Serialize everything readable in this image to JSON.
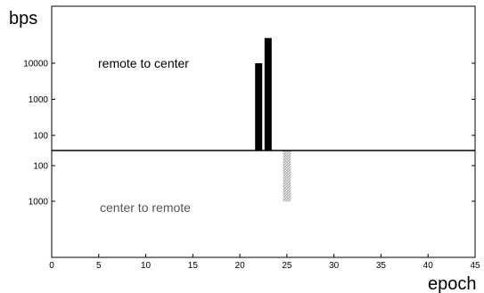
{
  "chart_data": {
    "type": "bar",
    "ylabel": "bps",
    "xlabel": "epoch",
    "xlim": [
      0,
      45
    ],
    "x_ticks": [
      0,
      5,
      10,
      15,
      20,
      25,
      30,
      35,
      40,
      45
    ],
    "y_scale": "log",
    "y_ticks_up": [
      "100",
      "1000",
      "10000"
    ],
    "y_ticks_down": [
      "100",
      "1000"
    ],
    "annotations": [
      "remote to center",
      "center to remote"
    ],
    "series": [
      {
        "direction": "up",
        "color": "#000000",
        "points": [
          {
            "x": 1,
            "y": 18
          },
          {
            "x": 2,
            "y": 22
          },
          {
            "x": 3,
            "y": 18
          },
          {
            "x": 4,
            "y": 20
          },
          {
            "x": 5,
            "y": 22
          },
          {
            "x": 6,
            "y": 18
          },
          {
            "x": 7,
            "y": 20
          },
          {
            "x": 8,
            "y": 16
          },
          {
            "x": 9,
            "y": 20
          },
          {
            "x": 10,
            "y": 18
          },
          {
            "x": 11,
            "y": 22
          },
          {
            "x": 12,
            "y": 18
          },
          {
            "x": 13,
            "y": 20
          },
          {
            "x": 14,
            "y": 17
          },
          {
            "x": 15,
            "y": 18
          },
          {
            "x": 16,
            "y": 16
          },
          {
            "x": 17,
            "y": 18
          },
          {
            "x": 18,
            "y": 20
          },
          {
            "x": 19,
            "y": 18
          },
          {
            "x": 20,
            "y": 22
          },
          {
            "x": 21,
            "y": 18
          },
          {
            "x": 22,
            "y": 10000
          },
          {
            "x": 23,
            "y": 50000
          },
          {
            "x": 24,
            "y": 35
          },
          {
            "x": 28,
            "y": 16
          },
          {
            "x": 29,
            "y": 35
          },
          {
            "x": 30,
            "y": 22
          },
          {
            "x": 31,
            "y": 18
          },
          {
            "x": 32,
            "y": 20
          },
          {
            "x": 33,
            "y": 18
          },
          {
            "x": 34,
            "y": 16
          },
          {
            "x": 35,
            "y": 18
          },
          {
            "x": 36,
            "y": 22
          },
          {
            "x": 37,
            "y": 18
          },
          {
            "x": 38,
            "y": 15
          },
          {
            "x": 39,
            "y": 18
          }
        ]
      },
      {
        "direction": "down",
        "color": "#c8c8c8",
        "points": [
          {
            "x": 25,
            "y": 1000
          }
        ]
      }
    ]
  }
}
